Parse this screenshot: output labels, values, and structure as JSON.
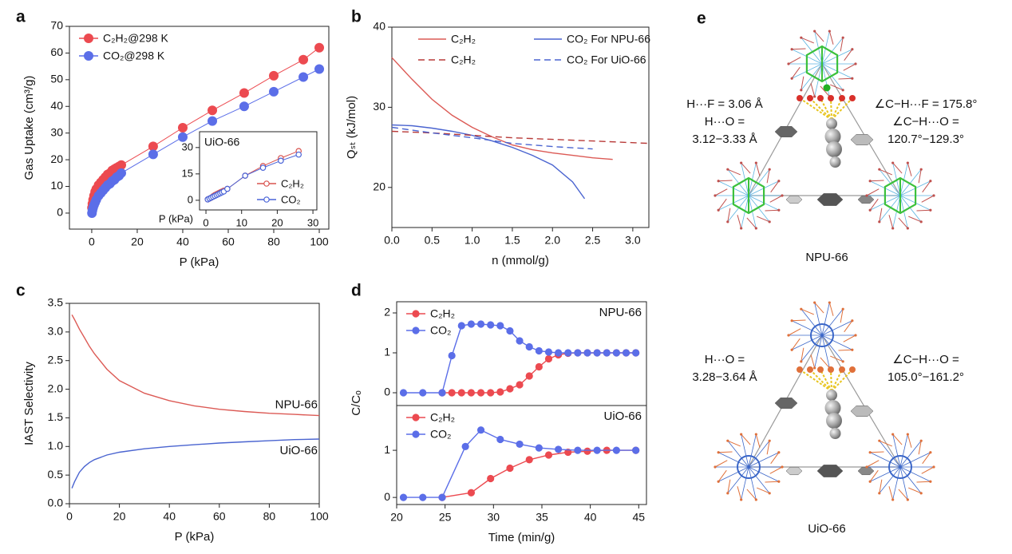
{
  "chart_data": [
    {
      "type": "scatter",
      "panel": "a",
      "xlabel": "P (kPa)",
      "ylabel": "Gas Uptake (cm³/g)",
      "xlim": [
        -9.8,
        104.2
      ],
      "ylim": [
        -6,
        70
      ],
      "xticks": [
        0,
        20,
        40,
        60,
        80,
        100
      ],
      "yticks": [
        0,
        10,
        20,
        30,
        40,
        50,
        60,
        70
      ],
      "marker": "filled",
      "legend": "upper left",
      "series": [
        {
          "name": "C₂H₂@298 K",
          "color": "#ec4a50",
          "x": [
            0.1,
            0.3,
            0.6,
            1,
            1.5,
            2,
            3,
            4,
            5,
            6,
            7,
            8,
            9,
            10,
            11,
            12,
            13,
            27,
            40,
            53,
            67,
            80,
            93,
            100
          ],
          "values": [
            2,
            3.5,
            5,
            6.5,
            8,
            9,
            10.5,
            11.5,
            12.5,
            13.5,
            14.5,
            15,
            16,
            16.5,
            17,
            17.5,
            18,
            25,
            32,
            38.5,
            45,
            51.5,
            57.5,
            62
          ]
        },
        {
          "name": "CO₂@298 K",
          "color": "#5b6ee8",
          "x": [
            0.1,
            0.3,
            0.6,
            1,
            1.5,
            2,
            3,
            4,
            5,
            6,
            7,
            8,
            9,
            10,
            11,
            12,
            13,
            27,
            40,
            53,
            67,
            80,
            93,
            100
          ],
          "values": [
            0,
            1,
            2,
            3,
            4,
            5,
            6.5,
            7.5,
            8.5,
            9.5,
            10.5,
            11,
            12,
            12.5,
            13.5,
            14,
            15,
            22,
            28.5,
            34.5,
            40,
            45.5,
            51,
            54
          ]
        }
      ]
    },
    {
      "type": "scatter",
      "title": "UiO-66",
      "xlabel": "P (kPa)",
      "xlim": [
        -1.8,
        31.1
      ],
      "ylim": [
        -5.5,
        39
      ],
      "xticks": [
        0,
        10,
        20,
        30
      ],
      "yticks": [
        0,
        15,
        30
      ],
      "marker": "open",
      "legend": "lower right",
      "series": [
        {
          "name": "C₂H₂",
          "color": "#d9534f",
          "x": [
            0.5,
            1,
            1.5,
            2,
            2.5,
            3,
            3.5,
            4,
            4.5,
            5,
            6,
            11,
            16,
            21,
            26
          ],
          "values": [
            0.5,
            1,
            1.5,
            2.3,
            3,
            3.5,
            4,
            4.5,
            5,
            5.5,
            6.5,
            14,
            19.5,
            24,
            28
          ]
        },
        {
          "name": "CO₂",
          "color": "#4a64d8",
          "x": [
            0.5,
            1,
            1.5,
            2,
            2.5,
            3,
            3.5,
            4,
            4.5,
            5,
            6,
            11,
            16,
            21,
            26
          ],
          "values": [
            0.5,
            1,
            1.5,
            2,
            2.5,
            3,
            3.5,
            4,
            4.5,
            5,
            6.5,
            14,
            18.5,
            22.5,
            26
          ]
        }
      ]
    },
    {
      "type": "line",
      "panel": "b",
      "xlabel": "n (mmol/g)",
      "ylabel": "Qₛₜ (kJ/mol)",
      "xlim": [
        0,
        3.2
      ],
      "ylim": [
        15,
        40
      ],
      "xticks": [
        {
          "value": 0,
          "label": "0.0"
        },
        0.5,
        {
          "value": 1,
          "label": "1.0"
        },
        1.5,
        {
          "value": 2,
          "label": "2.0"
        },
        2.5,
        {
          "value": 3,
          "label": "3.0"
        }
      ],
      "yticks": [
        20,
        30,
        40
      ],
      "legend": "upper right",
      "legend_ncol": 2,
      "series": [
        {
          "name": "C₂H₂",
          "color": "#dc5a55",
          "dash": false,
          "x": [
            0,
            0.25,
            0.5,
            0.75,
            1,
            1.25,
            1.5,
            1.75,
            2,
            2.25,
            2.5,
            2.75
          ],
          "values": [
            36.2,
            33.5,
            31,
            29,
            27.5,
            26.3,
            25.3,
            24.7,
            24.3,
            24,
            23.7,
            23.5
          ]
        },
        {
          "name": "CO₂ For NPU-66",
          "color": "#4a64d0",
          "dash": false,
          "x": [
            0,
            0.25,
            0.5,
            0.75,
            1,
            1.25,
            1.5,
            1.75,
            2,
            2.25,
            2.4
          ],
          "values": [
            27.8,
            27.7,
            27.4,
            27,
            26.5,
            25.8,
            25,
            24,
            22.8,
            20.7,
            18.6
          ]
        },
        {
          "name": "C₂H₂",
          "color": "#b83a38",
          "dash": true,
          "x": [
            0,
            0.5,
            1,
            1.5,
            2,
            2.5,
            3.2
          ],
          "values": [
            27,
            26.8,
            26.5,
            26.2,
            26,
            25.8,
            25.5
          ]
        },
        {
          "name": "CO₂ For UiO-66",
          "color": "#4a64d0",
          "dash": true,
          "x": [
            0,
            0.5,
            1,
            1.5,
            2,
            2.5
          ],
          "values": [
            27.5,
            26.8,
            26.2,
            25.5,
            25.1,
            24.8
          ]
        }
      ]
    },
    {
      "type": "line",
      "panel": "c",
      "xlabel": "P (kPa)",
      "ylabel": "IAST Selectivity",
      "xlim": [
        0,
        100
      ],
      "ylim": [
        0,
        3.5
      ],
      "xticks": [
        0,
        20,
        40,
        60,
        80,
        100
      ],
      "yticks": [
        {
          "value": 0,
          "label": "0.0"
        },
        0.5,
        {
          "value": 1,
          "label": "1.0"
        },
        1.5,
        {
          "value": 2,
          "label": "2.0"
        },
        2.5,
        {
          "value": 3,
          "label": "3.0"
        },
        3.5
      ],
      "legend": "inline",
      "x": [
        1,
        2,
        4,
        6,
        8,
        10,
        15,
        20,
        30,
        40,
        50,
        60,
        70,
        80,
        90,
        100
      ],
      "series": [
        {
          "name": "NPU-66",
          "color": "#dc5a55",
          "values": [
            3.3,
            3.22,
            3.05,
            2.9,
            2.75,
            2.62,
            2.35,
            2.15,
            1.93,
            1.8,
            1.71,
            1.65,
            1.61,
            1.58,
            1.56,
            1.54
          ]
        },
        {
          "name": "UiO-66",
          "color": "#4a64d0",
          "values": [
            0.27,
            0.38,
            0.55,
            0.65,
            0.72,
            0.77,
            0.85,
            0.9,
            0.96,
            1.0,
            1.03,
            1.06,
            1.08,
            1.1,
            1.12,
            1.13
          ]
        }
      ]
    },
    {
      "type": "line",
      "panel": "d",
      "ylabel": "C/Cₒ",
      "annotation": "NPU-66",
      "xlim": [
        20,
        45.8
      ],
      "ylim": [
        -0.32,
        2.28
      ],
      "yticks": [
        0,
        1,
        2
      ],
      "marker": "filled",
      "legend": "upper left",
      "x": [
        20.7,
        22.7,
        24.7,
        25.7,
        26.7,
        27.7,
        28.7,
        29.7,
        30.7,
        31.7,
        32.7,
        33.7,
        34.7,
        35.7,
        36.7,
        37.7,
        38.7,
        39.7,
        40.7,
        41.7,
        42.7,
        43.7,
        44.7
      ],
      "series": [
        {
          "name": "C₂H₂",
          "color": "#ec4a50",
          "values": [
            null,
            null,
            0,
            0,
            0,
            0,
            0,
            0,
            0.02,
            0.1,
            0.2,
            0.42,
            0.65,
            0.85,
            0.95,
            0.99,
            1,
            1,
            1,
            1,
            1,
            1,
            1
          ]
        },
        {
          "name": "CO₂",
          "color": "#5b6ee8",
          "values": [
            0,
            0,
            0,
            0.93,
            1.68,
            1.72,
            1.72,
            1.7,
            1.68,
            1.55,
            1.3,
            1.15,
            1.05,
            1.02,
            1,
            1,
            1,
            1,
            1,
            1,
            1,
            1,
            1
          ]
        }
      ]
    },
    {
      "type": "line",
      "xlabel": "Time (min/g)",
      "annotation": "UiO-66",
      "xlim": [
        20,
        45.8
      ],
      "ylim": [
        -0.15,
        1.95
      ],
      "xticks": [
        20,
        25,
        30,
        35,
        40,
        45
      ],
      "yticks": [
        0,
        1
      ],
      "marker": "filled",
      "legend": "upper left",
      "series": [
        {
          "name": "C₂H₂",
          "color": "#ec4a50",
          "x": [
            24.7,
            27.7,
            29.7,
            31.7,
            33.7,
            35.7,
            37.7,
            39.7,
            41.7,
            44.7
          ],
          "values": [
            0,
            0.1,
            0.4,
            0.62,
            0.8,
            0.9,
            0.96,
            0.98,
            1,
            1
          ]
        },
        {
          "name": "CO₂",
          "color": "#5b6ee8",
          "x": [
            20.7,
            22.7,
            24.7,
            27.1,
            28.7,
            30.7,
            32.7,
            34.7,
            36.7,
            38.7,
            40.7,
            42.7,
            44.7
          ],
          "values": [
            0,
            0,
            0,
            1.08,
            1.43,
            1.23,
            1.13,
            1.05,
            1.02,
            1,
            1,
            1,
            1
          ]
        }
      ]
    }
  ],
  "structures": [
    {
      "panel": "e",
      "name": "NPU-66",
      "left": [
        "H···F = 3.06 Å",
        "H···O =",
        "3.12−3.33 Å"
      ],
      "right": [
        "∠C−H···F = 175.8°",
        "∠C−H···O =",
        "120.7°−129.3°"
      ]
    },
    {
      "name": "UiO-66",
      "left": [
        "H···O =",
        "3.28−3.64 Å"
      ],
      "right": [
        "∠C−H···O =",
        "105.0°−161.2°"
      ]
    }
  ]
}
